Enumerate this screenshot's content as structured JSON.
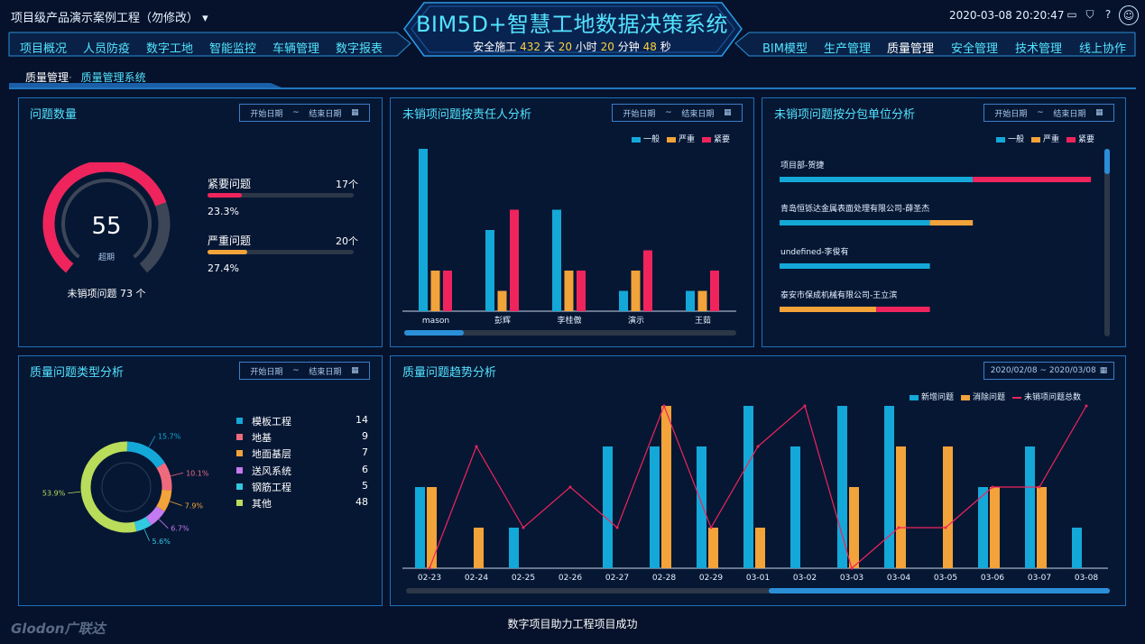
{
  "header": {
    "project_title": "项目级产品演示案例工程（勿修改）",
    "system_title": "BIM5D+智慧工地数据决策系统",
    "safety_prefix": "安全施工",
    "safety_days": "432",
    "safety_days_unit": "天",
    "safety_hours": "20",
    "safety_hours_unit": "小时",
    "safety_minutes": "20",
    "safety_minutes_unit": "分钟",
    "safety_seconds": "48",
    "safety_seconds_unit": "秒",
    "datetime": "2020-03-08 20:20:47",
    "icons": [
      "monitor-icon",
      "shirt-icon",
      "help-icon",
      "user-avatar-icon"
    ]
  },
  "nav": {
    "left": [
      "项目概况",
      "人员防疫",
      "数字工地",
      "智能监控",
      "车辆管理",
      "数字报表"
    ],
    "right": [
      "BIM模型",
      "生产管理",
      "质量管理",
      "安全管理",
      "技术管理",
      "线上协作"
    ],
    "active": "质量管理"
  },
  "breadcrumb": {
    "section": "质量管理",
    "page": "质量管理系统"
  },
  "date_picker": {
    "start": "开始日期",
    "sep": "~",
    "end": "结束日期"
  },
  "panel_issue_count": {
    "title": "问题数量",
    "gauge_value": "55",
    "gauge_label": "超期",
    "gauge_fraction": 0.75,
    "open_issues_text": "未销项问题 73 个",
    "urgent_label": "紧要问题",
    "urgent_count": "17个",
    "urgent_percent": "23.3%",
    "urgent_fraction": 0.233,
    "severe_label": "严重问题",
    "severe_count": "20个",
    "severe_percent": "27.4%",
    "severe_fraction": 0.274
  },
  "panel_by_person": {
    "title": "未销项问题按责任人分析",
    "legend": [
      "一般",
      "严重",
      "紧要"
    ]
  },
  "panel_by_sub": {
    "title": "未销项问题按分包单位分析",
    "legend": [
      "一般",
      "严重",
      "紧要"
    ]
  },
  "panel_type": {
    "title": "质量问题类型分析",
    "items": [
      {
        "name": "模板工程",
        "count": "14",
        "percent": "15.7%"
      },
      {
        "name": "地基",
        "count": "9",
        "percent": "10.1%"
      },
      {
        "name": "地面基层",
        "count": "7",
        "percent": "7.9%"
      },
      {
        "name": "送风系统",
        "count": "6",
        "percent": "6.7%"
      },
      {
        "name": "钢筋工程",
        "count": "5",
        "percent": "5.6%"
      },
      {
        "name": "其他",
        "count": "48",
        "percent": "53.9%"
      }
    ]
  },
  "panel_trend": {
    "title": "质量问题趋势分析",
    "date_range": "2020/02/08 ~ 2020/03/08",
    "legend": [
      "新增问题",
      "消除问题",
      "未销项问题总数"
    ]
  },
  "colors": {
    "normal": "#14a8d8",
    "severe": "#f2a33a",
    "urgent": "#f0245c",
    "accent": "#53e3ff",
    "type_colors": [
      "#14a8d8",
      "#f06a7d",
      "#f2a33a",
      "#c47af0",
      "#32c8e0",
      "#b9dc5a"
    ]
  },
  "chart_data": [
    {
      "type": "bar",
      "id": "by_person",
      "categories": [
        "mason",
        "彭辉",
        "李桂傲",
        "演示",
        "王茹"
      ],
      "series": [
        {
          "name": "一般",
          "values": [
            8,
            4,
            5,
            1,
            1
          ]
        },
        {
          "name": "严重",
          "values": [
            2,
            1,
            2,
            2,
            1
          ]
        },
        {
          "name": "紧要",
          "values": [
            2,
            5,
            2,
            3,
            2
          ]
        }
      ],
      "ylim": [
        0,
        8
      ]
    },
    {
      "type": "bar",
      "id": "by_subcontractor",
      "orientation": "horizontal",
      "stacked": true,
      "categories": [
        "项目部-贺捷",
        "青岛恒铄达金属表面处理有限公司-薛圣杰",
        "undefined-李俊有",
        "泰安市保成机械有限公司-王立滨"
      ],
      "series": [
        {
          "name": "一般",
          "values": [
            9,
            7,
            7,
            0
          ]
        },
        {
          "name": "严重",
          "values": [
            0,
            2,
            0,
            4.5
          ]
        },
        {
          "name": "紧要",
          "values": [
            5.5,
            0,
            0,
            2.5
          ]
        }
      ],
      "xlim": [
        0,
        15
      ]
    },
    {
      "type": "pie",
      "id": "issue_types",
      "labels": [
        "模板工程",
        "地基",
        "地面基层",
        "送风系统",
        "钢筋工程",
        "其他"
      ],
      "values": [
        14,
        9,
        7,
        6,
        5,
        48
      ],
      "percent_labels": [
        "15.7%",
        "10.1%",
        "7.9%",
        "6.7%",
        "5.6%",
        "53.9%"
      ]
    },
    {
      "type": "bar",
      "id": "trend",
      "categories": [
        "02-23",
        "02-24",
        "02-25",
        "02-26",
        "02-27",
        "02-28",
        "02-29",
        "03-01",
        "03-02",
        "03-03",
        "03-04",
        "03-05",
        "03-06",
        "03-07",
        "03-08"
      ],
      "series": [
        {
          "name": "新增问题",
          "type": "bar",
          "values": [
            2,
            0,
            1,
            0,
            3,
            3,
            3,
            4,
            3,
            4,
            4,
            0,
            2,
            3,
            1
          ]
        },
        {
          "name": "消除问题",
          "type": "bar",
          "values": [
            2,
            1,
            0,
            0,
            0,
            4,
            1,
            1,
            0,
            2,
            3,
            3,
            2,
            2,
            0
          ]
        },
        {
          "name": "未销项问题总数",
          "type": "line",
          "values": [
            0,
            3,
            1,
            2,
            1,
            4,
            1,
            3,
            4,
            0,
            1,
            1,
            2,
            2,
            4
          ]
        }
      ],
      "ylim": [
        0,
        4
      ]
    }
  ]
}
